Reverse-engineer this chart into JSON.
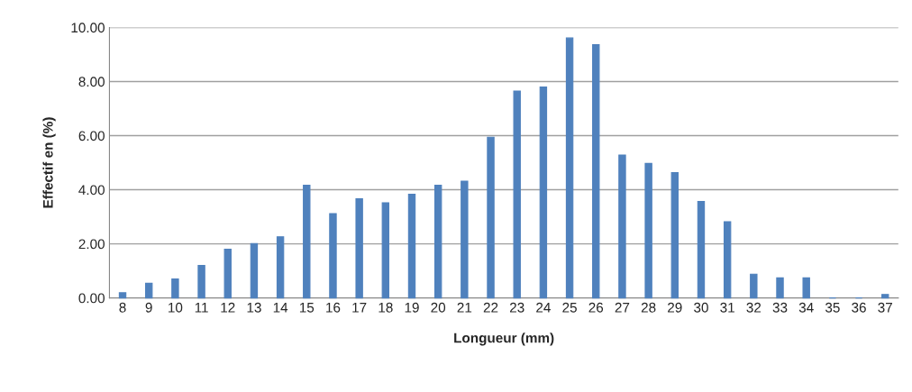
{
  "chart_data": {
    "type": "bar",
    "xlabel": "Longueur (mm)",
    "ylabel": "Effectif en (%)",
    "categories": [
      "8",
      "9",
      "10",
      "11",
      "12",
      "13",
      "14",
      "15",
      "16",
      "17",
      "18",
      "19",
      "20",
      "21",
      "22",
      "23",
      "24",
      "25",
      "26",
      "27",
      "28",
      "29",
      "30",
      "31",
      "32",
      "33",
      "34",
      "35",
      "36",
      "37"
    ],
    "values": [
      0.19,
      0.54,
      0.7,
      1.2,
      1.8,
      2.01,
      2.26,
      4.17,
      3.12,
      3.67,
      3.52,
      3.83,
      4.17,
      4.32,
      5.94,
      7.65,
      7.8,
      9.61,
      9.36,
      5.28,
      4.97,
      4.63,
      3.57,
      2.82,
      0.88,
      0.74,
      0.74,
      0,
      0,
      0.13
    ],
    "color": "#4f81bd",
    "ylim": [
      0,
      10
    ],
    "yticks": [
      {
        "value": 0,
        "label": "0.00"
      },
      {
        "value": 2,
        "label": "2.00"
      },
      {
        "value": 4,
        "label": "4.00"
      },
      {
        "value": 6,
        "label": "6.00"
      },
      {
        "value": 8,
        "label": "8.00"
      },
      {
        "value": 10,
        "label": "10.00"
      }
    ],
    "grid": "y",
    "legend": false
  }
}
